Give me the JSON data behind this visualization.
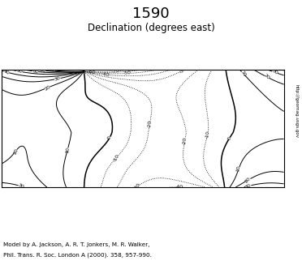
{
  "title_year": "1590",
  "title_sub": "Declination (degrees east)",
  "caption_line1": "Model by A. Jackson, A. R. T. Jonkers, M. R. Walker,",
  "caption_line2": "Phil. Trans. R. Soc. London A (2000). 358, 957-990.",
  "url_text": "http://geomag.usgs.gov",
  "bg_color": "#ffffff",
  "coastline_color": "#888888",
  "contour_color": "#000000",
  "figsize": [
    3.72,
    3.27
  ],
  "dpi": 100,
  "lon_min": -180,
  "lon_max": 180,
  "lat_min": -70,
  "lat_max": 80,
  "pole_lon": -75.0,
  "pole_lat": 78.0,
  "contour_step": 10
}
